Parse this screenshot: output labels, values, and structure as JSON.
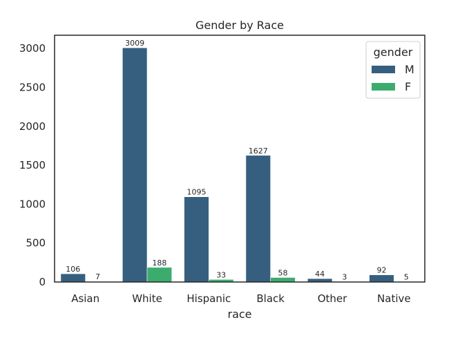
{
  "chart_data": {
    "type": "bar",
    "title": "Gender by Race",
    "xlabel": "race",
    "ylabel": "",
    "categories": [
      "Asian",
      "White",
      "Hispanic",
      "Black",
      "Other",
      "Native"
    ],
    "series": [
      {
        "name": "M",
        "color": "#365f7f",
        "values": [
          106,
          3009,
          1095,
          1627,
          44,
          92
        ]
      },
      {
        "name": "F",
        "color": "#3cac6e",
        "values": [
          7,
          188,
          33,
          58,
          3,
          5
        ]
      }
    ],
    "ylim": [
      0,
      3170
    ],
    "yticks": [
      0,
      500,
      1000,
      1500,
      2000,
      2500,
      3000
    ],
    "legend": {
      "title": "gender",
      "position": "top-right"
    },
    "grid": false
  }
}
